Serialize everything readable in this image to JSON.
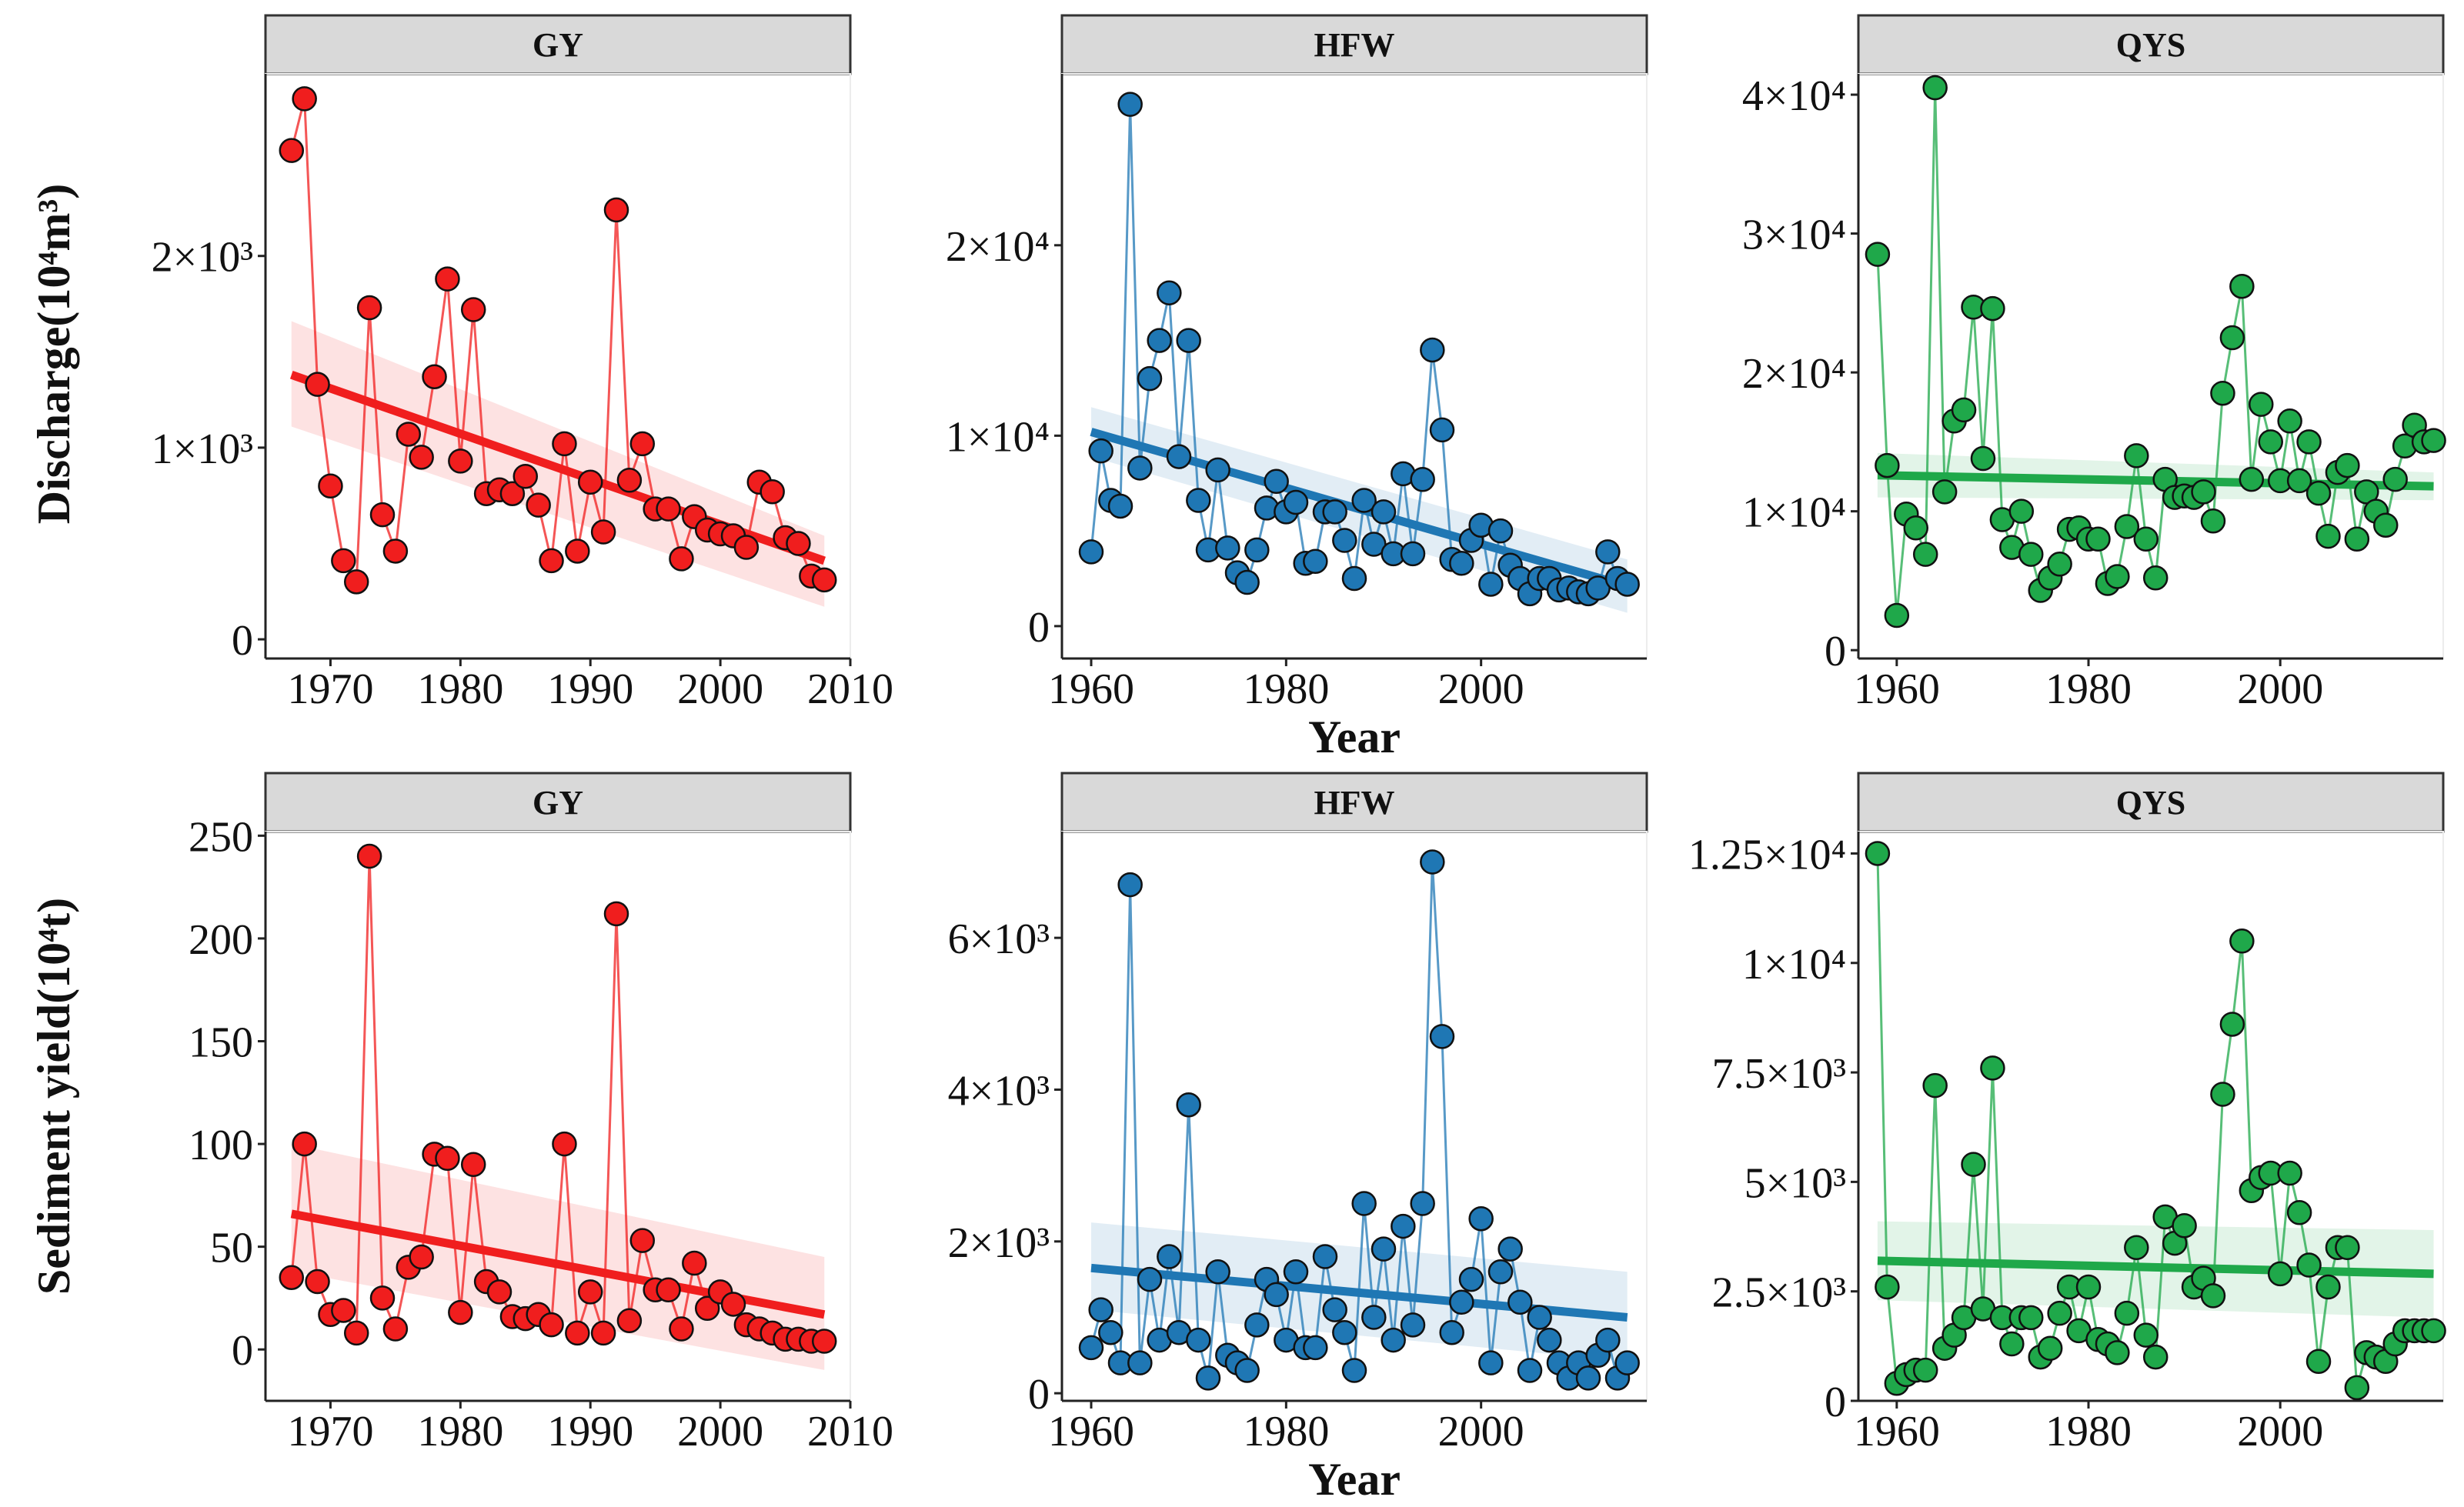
{
  "figure": {
    "row_titles": [
      "Discharge(10⁴m³)",
      "Sediment yield(10⁴t)"
    ],
    "x_title": "Year",
    "colors": {
      "GY": "#f01e1e",
      "HFW": "#1f77b4",
      "QYS": "#1fa84a"
    }
  },
  "chart_data": [
    {
      "type": "scatter",
      "panel": "discharge-GY",
      "title": "GY",
      "color": "#f01e1e",
      "xlim": [
        1965,
        2010
      ],
      "ylim": [
        -100,
        2950
      ],
      "xticks": [
        1970,
        1980,
        1990,
        2000,
        2010
      ],
      "xtick_labels": [
        "1970",
        "1980",
        "1990",
        "2000",
        "2010"
      ],
      "yticks": [
        0,
        1000,
        2000
      ],
      "ytick_labels": [
        "0",
        "1×10³",
        "2×10³"
      ],
      "x": [
        1967,
        1968,
        1969,
        1970,
        1971,
        1972,
        1973,
        1974,
        1975,
        1976,
        1977,
        1978,
        1979,
        1980,
        1981,
        1982,
        1983,
        1984,
        1985,
        1986,
        1987,
        1988,
        1989,
        1990,
        1991,
        1992,
        1993,
        1994,
        1995,
        1996,
        1997,
        1998,
        1999,
        2000,
        2001,
        2002,
        2003,
        2004,
        2005,
        2006,
        2007,
        2008
      ],
      "y": [
        2550,
        2820,
        1330,
        800,
        410,
        300,
        1730,
        650,
        460,
        1070,
        950,
        1370,
        1880,
        930,
        1720,
        760,
        780,
        760,
        850,
        700,
        410,
        1020,
        460,
        820,
        560,
        2240,
        830,
        1020,
        680,
        680,
        420,
        640,
        570,
        550,
        540,
        480,
        820,
        770,
        530,
        500,
        330,
        310
      ],
      "trend": {
        "x": [
          1967,
          2008
        ],
        "y": [
          1380,
          410
        ],
        "upper": [
          1660,
          540
        ],
        "lower": [
          1110,
          170
        ]
      },
      "show_xlabel": false
    },
    {
      "type": "scatter",
      "panel": "discharge-HFW",
      "title": "HFW",
      "color": "#1f77b4",
      "xlim": [
        1957,
        2017
      ],
      "ylim": [
        -1700,
        29000
      ],
      "xticks": [
        1960,
        1980,
        2000
      ],
      "xtick_labels": [
        "1960",
        "1980",
        "2000"
      ],
      "yticks": [
        0,
        10000,
        20000
      ],
      "ytick_labels": [
        "0",
        "1×10⁴",
        "2×10⁴"
      ],
      "x": [
        1960,
        1961,
        1962,
        1963,
        1964,
        1965,
        1966,
        1967,
        1968,
        1969,
        1970,
        1971,
        1972,
        1973,
        1974,
        1975,
        1976,
        1977,
        1978,
        1979,
        1980,
        1981,
        1982,
        1983,
        1984,
        1985,
        1986,
        1987,
        1988,
        1989,
        1990,
        1991,
        1992,
        1993,
        1994,
        1995,
        1996,
        1997,
        1998,
        1999,
        2000,
        2001,
        2002,
        2003,
        2004,
        2005,
        2006,
        2007,
        2008,
        2009,
        2010,
        2011,
        2012,
        2013,
        2014,
        2015
      ],
      "y": [
        3900,
        9200,
        6600,
        6300,
        27400,
        8300,
        13000,
        15000,
        17500,
        8900,
        15000,
        6600,
        4000,
        8200,
        4100,
        2800,
        2300,
        4000,
        6200,
        7600,
        6000,
        6500,
        3300,
        3400,
        6000,
        6000,
        4500,
        2500,
        6600,
        4300,
        6000,
        3800,
        8000,
        3800,
        7700,
        14500,
        10300,
        3500,
        3300,
        4500,
        5300,
        2200,
        5000,
        3200,
        2500,
        1700,
        2500,
        2500,
        1900,
        2000,
        1800,
        1700,
        2000,
        3900,
        2500,
        2200
      ],
      "trend": {
        "x": [
          1960,
          2015
        ],
        "y": [
          10200,
          2100
        ],
        "upper": [
          11500,
          3500
        ],
        "lower": [
          8900,
          700
        ]
      },
      "show_xlabel": true
    },
    {
      "type": "scatter",
      "panel": "discharge-QYS",
      "title": "QYS",
      "color": "#1fa84a",
      "xlim": [
        1956,
        2017
      ],
      "ylim": [
        -600,
        41500
      ],
      "xticks": [
        1960,
        1980,
        2000
      ],
      "xtick_labels": [
        "1960",
        "1980",
        "2000"
      ],
      "yticks": [
        0,
        10000,
        20000,
        30000,
        40000
      ],
      "ytick_labels": [
        "0",
        "1×10⁴",
        "2×10⁴",
        "3×10⁴",
        "4×10⁴"
      ],
      "x": [
        1958,
        1959,
        1960,
        1961,
        1962,
        1963,
        1964,
        1965,
        1966,
        1967,
        1968,
        1969,
        1970,
        1971,
        1972,
        1973,
        1974,
        1975,
        1976,
        1977,
        1978,
        1979,
        1980,
        1981,
        1982,
        1983,
        1984,
        1985,
        1986,
        1987,
        1988,
        1989,
        1990,
        1991,
        1992,
        1993,
        1994,
        1995,
        1996,
        1997,
        1998,
        1999,
        2000,
        2001,
        2002,
        2003,
        2004,
        2005,
        2006,
        2007,
        2008,
        2009,
        2010,
        2011,
        2012,
        2013,
        2014,
        2015,
        2016
      ],
      "y": [
        28500,
        13300,
        2500,
        9800,
        8800,
        6900,
        40500,
        11400,
        16500,
        17300,
        24700,
        13800,
        24600,
        9400,
        7400,
        10000,
        6900,
        4300,
        5200,
        6200,
        8700,
        8800,
        8000,
        8000,
        4800,
        5300,
        8900,
        14000,
        8000,
        5200,
        12300,
        11000,
        11100,
        11000,
        11400,
        9300,
        18500,
        22500,
        26200,
        12300,
        17700,
        15000,
        12200,
        16500,
        12200,
        15000,
        11300,
        8200,
        12800,
        13300,
        8000,
        11400,
        10000,
        9000,
        12300,
        14700,
        16200,
        15000,
        15100
      ],
      "trend": {
        "x": [
          1958,
          2016
        ],
        "y": [
          12600,
          11800
        ],
        "upper": [
          14200,
          12800
        ],
        "lower": [
          11000,
          10800
        ]
      },
      "show_xlabel": false
    },
    {
      "type": "scatter",
      "panel": "sediment-GY",
      "title": "GY",
      "color": "#f01e1e",
      "xlim": [
        1965,
        2010
      ],
      "ylim": [
        -25,
        252
      ],
      "xticks": [
        1970,
        1980,
        1990,
        2000,
        2010
      ],
      "xtick_labels": [
        "1970",
        "1980",
        "1990",
        "2000",
        "2010"
      ],
      "yticks": [
        0,
        50,
        100,
        150,
        200,
        250
      ],
      "ytick_labels": [
        "0",
        "50",
        "100",
        "150",
        "200",
        "250"
      ],
      "x": [
        1967,
        1968,
        1969,
        1970,
        1971,
        1972,
        1973,
        1974,
        1975,
        1976,
        1977,
        1978,
        1979,
        1980,
        1981,
        1982,
        1983,
        1984,
        1985,
        1986,
        1987,
        1988,
        1989,
        1990,
        1991,
        1992,
        1993,
        1994,
        1995,
        1996,
        1997,
        1998,
        1999,
        2000,
        2001,
        2002,
        2003,
        2004,
        2005,
        2006,
        2007,
        2008
      ],
      "y": [
        35,
        100,
        33,
        17,
        19,
        8,
        240,
        25,
        10,
        40,
        45,
        95,
        93,
        18,
        90,
        33,
        28,
        16,
        15,
        17,
        12,
        100,
        8,
        28,
        8,
        212,
        14,
        53,
        29,
        29,
        10,
        42,
        20,
        28,
        22,
        12,
        10,
        8,
        5,
        5,
        4,
        4
      ],
      "trend": {
        "x": [
          1967,
          2008
        ],
        "y": [
          66,
          17
        ],
        "upper": [
          100,
          45
        ],
        "lower": [
          38,
          -10
        ]
      },
      "show_xlabel": false
    },
    {
      "type": "scatter",
      "panel": "sediment-HFW",
      "title": "HFW",
      "color": "#1f77b4",
      "xlim": [
        1957,
        2017
      ],
      "ylim": [
        -100,
        7400
      ],
      "xticks": [
        1960,
        1980,
        2000
      ],
      "xtick_labels": [
        "1960",
        "1980",
        "2000"
      ],
      "yticks": [
        0,
        2000,
        4000,
        6000
      ],
      "ytick_labels": [
        "0",
        "2×10³",
        "4×10³",
        "6×10³"
      ],
      "x": [
        1960,
        1961,
        1962,
        1963,
        1964,
        1965,
        1966,
        1967,
        1968,
        1969,
        1970,
        1971,
        1972,
        1973,
        1974,
        1975,
        1976,
        1977,
        1978,
        1979,
        1980,
        1981,
        1982,
        1983,
        1984,
        1985,
        1986,
        1987,
        1988,
        1989,
        1990,
        1991,
        1992,
        1993,
        1994,
        1995,
        1996,
        1997,
        1998,
        1999,
        2000,
        2001,
        2002,
        2003,
        2004,
        2005,
        2006,
        2007,
        2008,
        2009,
        2010,
        2011,
        2012,
        2013,
        2014,
        2015
      ],
      "y": [
        600,
        1100,
        800,
        400,
        6700,
        400,
        1500,
        700,
        1800,
        800,
        3800,
        700,
        200,
        1600,
        500,
        400,
        300,
        900,
        1500,
        1300,
        700,
        1600,
        600,
        600,
        1800,
        1100,
        800,
        300,
        2500,
        1000,
        1900,
        700,
        2200,
        900,
        2500,
        7000,
        4700,
        800,
        1200,
        1500,
        2300,
        400,
        1600,
        1900,
        1200,
        300,
        1000,
        700,
        400,
        200,
        400,
        200,
        500,
        700,
        200,
        400
      ],
      "trend": {
        "x": [
          1960,
          2015
        ],
        "y": [
          1650,
          1000
        ],
        "upper": [
          2250,
          1600
        ],
        "lower": [
          1100,
          420
        ]
      },
      "show_xlabel": true
    },
    {
      "type": "scatter",
      "panel": "sediment-QYS",
      "title": "QYS",
      "color": "#1fa84a",
      "xlim": [
        1956,
        2017
      ],
      "ylim": [
        0,
        13000
      ],
      "xticks": [
        1960,
        1980,
        2000
      ],
      "xtick_labels": [
        "1960",
        "1980",
        "2000"
      ],
      "yticks": [
        0,
        2500,
        5000,
        7500,
        10000,
        12500
      ],
      "ytick_labels": [
        "0",
        "2.5×10³",
        "5×10³",
        "7.5×10³",
        "1×10⁴",
        "1.25×10⁴"
      ],
      "x": [
        1958,
        1959,
        1960,
        1961,
        1962,
        1963,
        1964,
        1965,
        1966,
        1967,
        1968,
        1969,
        1970,
        1971,
        1972,
        1973,
        1974,
        1975,
        1976,
        1977,
        1978,
        1979,
        1980,
        1981,
        1982,
        1983,
        1984,
        1985,
        1986,
        1987,
        1988,
        1989,
        1990,
        1991,
        1992,
        1993,
        1994,
        1995,
        1996,
        1997,
        1998,
        1999,
        2000,
        2001,
        2002,
        2003,
        2004,
        2005,
        2006,
        2007,
        2008,
        2009,
        2010,
        2011,
        2012,
        2013,
        2014,
        2015,
        2016
      ],
      "y": [
        12500,
        2600,
        400,
        600,
        700,
        700,
        7200,
        1200,
        1500,
        1900,
        5400,
        2100,
        7600,
        1900,
        1300,
        1900,
        1900,
        1000,
        1200,
        2000,
        2600,
        1600,
        2600,
        1400,
        1300,
        1100,
        2000,
        3500,
        1500,
        1000,
        4200,
        3600,
        4000,
        2600,
        2800,
        2400,
        7000,
        8600,
        10500,
        4800,
        5100,
        5200,
        2900,
        5200,
        4300,
        3100,
        900,
        2600,
        3500,
        3500,
        300,
        1100,
        1000,
        900,
        1300,
        1600,
        1600,
        1600,
        1600
      ],
      "trend": {
        "x": [
          1958,
          2016
        ],
        "y": [
          3200,
          2900
        ],
        "upper": [
          4100,
          3900
        ],
        "lower": [
          2300,
          1900
        ]
      },
      "show_xlabel": false
    }
  ]
}
